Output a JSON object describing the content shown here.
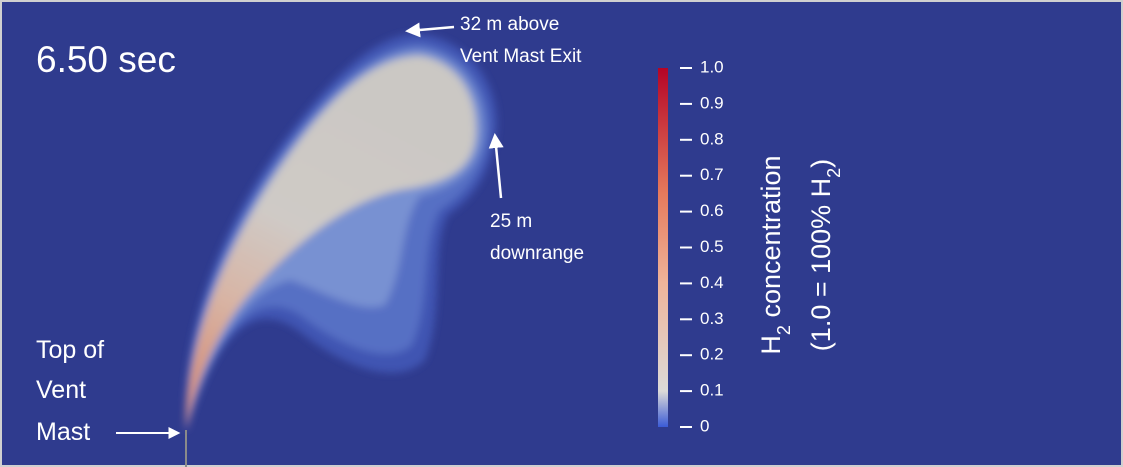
{
  "timestamp": "6.50 sec",
  "annotations": {
    "apex": [
      "32 m above",
      "Vent Mast Exit"
    ],
    "downrange": [
      "25 m",
      "downrange"
    ],
    "vent_mast": [
      "Top of",
      "Vent",
      "Mast"
    ]
  },
  "colorbar": {
    "title": {
      "line1": [
        "H",
        "2",
        " concentration"
      ],
      "line2": [
        "(1.0 = 100% H",
        "2",
        ")"
      ]
    },
    "lim": [
      0,
      1
    ],
    "ticks": [
      {
        "value": 1,
        "label": "1.0"
      },
      0.9,
      0.8,
      0.7,
      0.6,
      0.5,
      0.4,
      0.3,
      0.2,
      0.1,
      0
    ],
    "colors": [
      "#3b5bd6",
      "#dcdad8",
      "#efb49a",
      "#e67a5c",
      "#b40426"
    ]
  }
}
